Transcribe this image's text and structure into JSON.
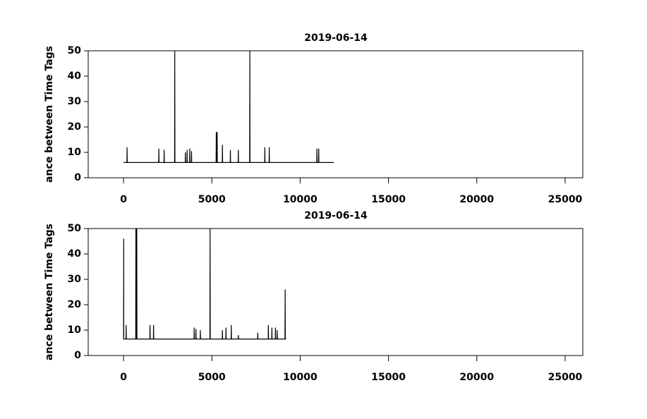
{
  "chart_data": [
    {
      "type": "line",
      "title": "2019-06-14",
      "ylabel": "ance between Time Tags",
      "x": [
        0,
        190,
        200,
        210,
        1990,
        2000,
        2010,
        2290,
        2300,
        2310,
        2890,
        2900,
        2910,
        3490,
        3500,
        3510,
        3590,
        3600,
        3610,
        3740,
        3750,
        3760,
        3840,
        3850,
        3860,
        5240,
        5250,
        5260,
        5290,
        5300,
        5310,
        5590,
        5600,
        5610,
        6040,
        6050,
        6060,
        6490,
        6500,
        6510,
        7140,
        7150,
        7160,
        7990,
        8000,
        8010,
        8240,
        8250,
        8260,
        10940,
        10950,
        10960,
        11040,
        11050,
        11060,
        11900
      ],
      "series": [
        {
          "color": "#000000",
          "values": [
            6,
            6,
            12,
            6,
            6,
            11.5,
            6,
            6,
            11,
            6,
            6,
            50,
            6,
            6,
            10,
            6,
            6,
            11,
            6,
            6,
            11.5,
            6,
            6,
            10.5,
            6,
            6,
            18,
            6,
            6,
            18,
            6,
            6,
            13,
            6,
            6,
            11,
            6,
            6,
            11,
            6,
            6,
            50,
            6,
            6,
            12,
            6,
            6,
            12,
            6,
            6,
            11.5,
            6,
            6,
            11.5,
            6,
            6
          ]
        }
      ],
      "xlim": [
        -2000,
        26000
      ],
      "xticks": [
        0,
        5000,
        10000,
        15000,
        20000,
        25000
      ],
      "ylim": [
        0,
        50
      ],
      "yticks": [
        0,
        10,
        20,
        30,
        40,
        50
      ]
    },
    {
      "type": "line",
      "title": "2019-06-14",
      "ylabel": "ance between Time Tags",
      "x": [
        0,
        5,
        10,
        15,
        140,
        150,
        160,
        690,
        700,
        710,
        740,
        750,
        760,
        1490,
        1500,
        1510,
        1690,
        1700,
        1710,
        3990,
        4000,
        4010,
        4090,
        4100,
        4110,
        4340,
        4350,
        4360,
        4890,
        4900,
        4910,
        5590,
        5600,
        5610,
        5790,
        5800,
        5810,
        6090,
        6100,
        6110,
        6490,
        6500,
        6510,
        7590,
        7600,
        7610,
        8190,
        8200,
        8210,
        8390,
        8400,
        8410,
        8590,
        8600,
        8610,
        8690,
        8700,
        8710,
        9140,
        9150,
        9160,
        9200
      ],
      "series": [
        {
          "color": "#000000",
          "values": [
            6.5,
            6.5,
            46,
            6.5,
            6.5,
            12,
            6.5,
            6.5,
            50,
            6.5,
            6.5,
            50,
            6.5,
            6.5,
            12,
            6.5,
            6.5,
            12,
            6.5,
            6.5,
            11,
            6.5,
            6.5,
            10.5,
            6.5,
            6.5,
            10,
            6.5,
            6.5,
            50,
            6.5,
            6.5,
            10,
            6.5,
            6.5,
            11,
            6.5,
            6.5,
            12,
            6.5,
            6.5,
            8,
            6.5,
            6.5,
            9,
            6.5,
            6.5,
            12,
            6.5,
            6.5,
            11,
            6.5,
            6.5,
            11,
            6.5,
            6.5,
            10,
            6.5,
            6.5,
            26,
            6.5,
            6.5
          ]
        }
      ],
      "xlim": [
        -2000,
        26000
      ],
      "xticks": [
        0,
        5000,
        10000,
        15000,
        20000,
        25000
      ],
      "ylim": [
        0,
        50
      ],
      "yticks": [
        0,
        10,
        20,
        30,
        40,
        50
      ]
    }
  ]
}
